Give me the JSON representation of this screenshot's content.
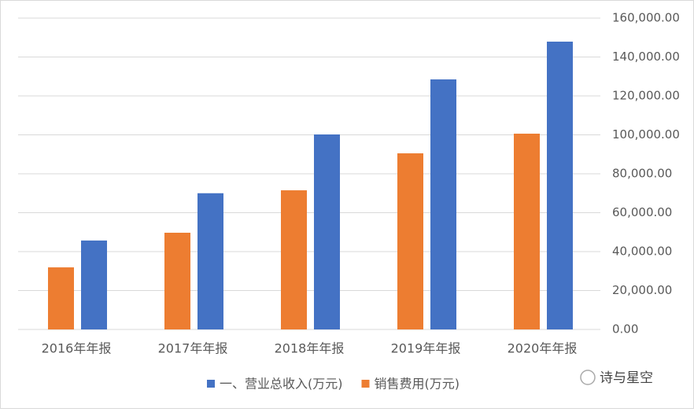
{
  "chart_data": {
    "type": "bar",
    "categories": [
      "2016年年报",
      "2017年年报",
      "2018年年报",
      "2019年年报",
      "2020年年报"
    ],
    "series": [
      {
        "name": "一、营业总收入(万元)",
        "color": "#4472c4",
        "values": [
          45700,
          70000,
          100200,
          128500,
          147900
        ]
      },
      {
        "name": "销售费用(万元)",
        "color": "#ed7d31",
        "values": [
          31900,
          49700,
          71500,
          90500,
          100600
        ]
      }
    ],
    "ylim": [
      0,
      160000
    ],
    "yticks": [
      {
        "value": 0,
        "label": "0.00"
      },
      {
        "value": 20000,
        "label": "20,000.00"
      },
      {
        "value": 40000,
        "label": "40,000.00"
      },
      {
        "value": 60000,
        "label": "60,000.00"
      },
      {
        "value": 80000,
        "label": "80,000.00"
      },
      {
        "value": 100000,
        "label": "100,000.00"
      },
      {
        "value": 120000,
        "label": "120,000.00"
      },
      {
        "value": 140000,
        "label": "140,000.00"
      },
      {
        "value": 160000,
        "label": "160,000.00"
      }
    ],
    "grid": true,
    "legend": "bottom"
  },
  "watermark": "诗与星空"
}
